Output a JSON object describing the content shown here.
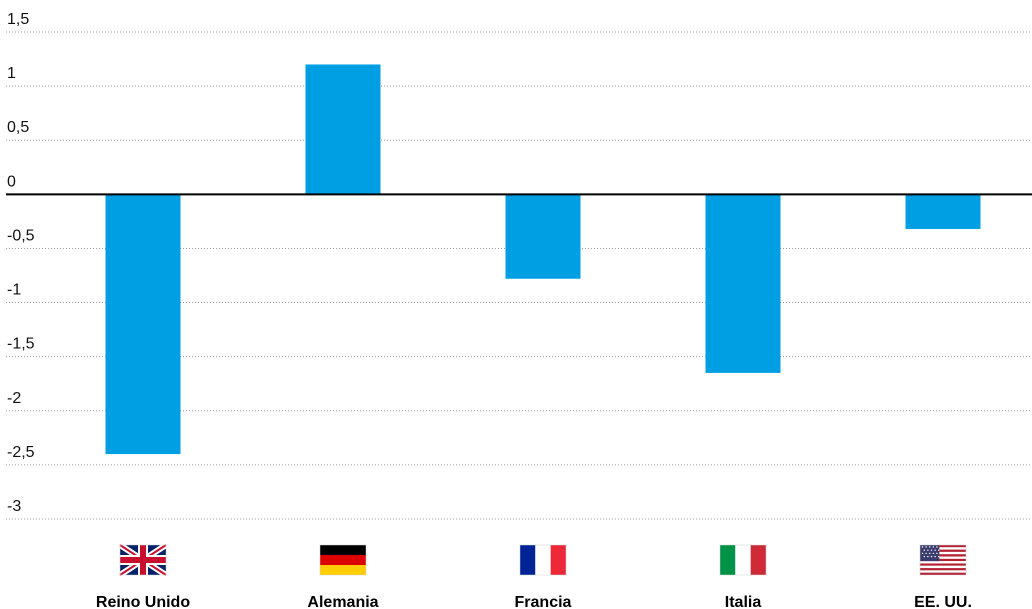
{
  "chart_data": {
    "type": "bar",
    "categories": [
      "Reino Unido",
      "Alemania",
      "Francia",
      "Italia",
      "EE. UU."
    ],
    "values": [
      -2.4,
      1.2,
      -0.78,
      -1.65,
      -0.32
    ],
    "flags": [
      "uk-flag",
      "germany-flag",
      "france-flag",
      "italy-flag",
      "usa-flag"
    ],
    "yticks": [
      1.5,
      1,
      0.5,
      0,
      -0.5,
      -1,
      -1.5,
      -2,
      -2.5,
      -3
    ],
    "ytick_labels": [
      "1,5",
      "1",
      "0,5",
      "0",
      "-0,5",
      "-1",
      "-1,5",
      "-2",
      "-2,5",
      "-3"
    ],
    "ylim": [
      -3,
      1.5
    ],
    "title": "",
    "xlabel": "",
    "ylabel": "",
    "grid": true,
    "bar_color": "#009fe3",
    "legend": "none"
  }
}
